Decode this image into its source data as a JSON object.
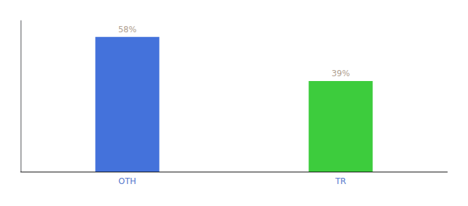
{
  "chart_data": {
    "type": "bar",
    "categories": [
      "OTH",
      "TR"
    ],
    "values": [
      58,
      39
    ],
    "value_labels": [
      "58%",
      "39%"
    ],
    "colors": [
      "#4472db",
      "#3dcc3d"
    ],
    "ylim": [
      0,
      65
    ],
    "grid": false,
    "data_labels": true,
    "tick_labels": "x"
  }
}
